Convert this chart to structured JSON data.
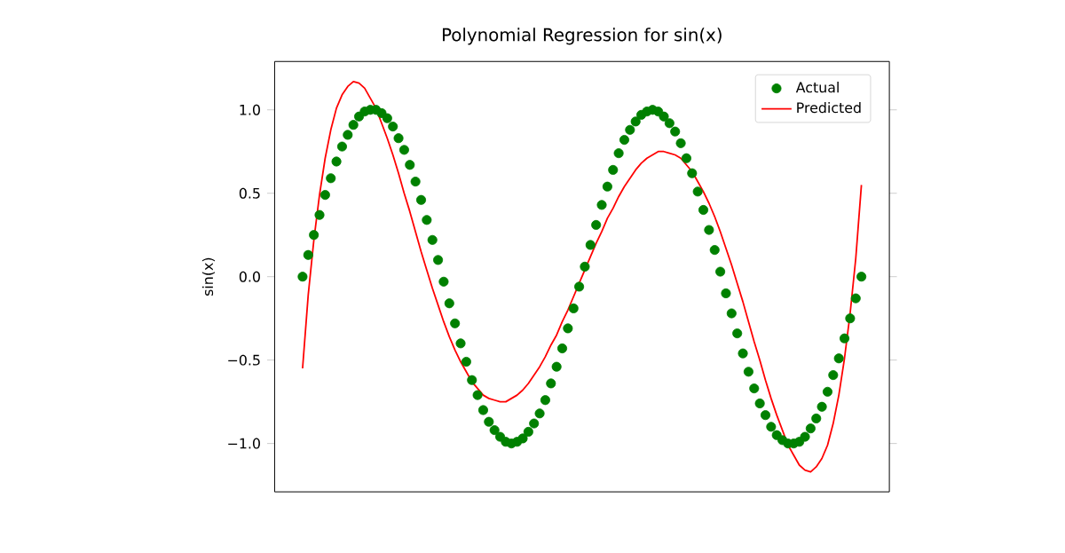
{
  "chart_data": {
    "type": "scatter",
    "title": "Polynomial Regression for sin(x)",
    "ylabel": "sin(x)",
    "categories": [
      null,
      null,
      null,
      null,
      null,
      null,
      null,
      null,
      null,
      null,
      null,
      null,
      null,
      null,
      null,
      null,
      null,
      null,
      null,
      null,
      null,
      null,
      null,
      null,
      null,
      null,
      null,
      null,
      null,
      null,
      null,
      null,
      null,
      null,
      null,
      null,
      null,
      null,
      null,
      null,
      null,
      null,
      null,
      null,
      null,
      null,
      null,
      null,
      null,
      null,
      null,
      null,
      null,
      null,
      null,
      null,
      null,
      null,
      null,
      null,
      null,
      null,
      null,
      null,
      null,
      null,
      null,
      null,
      null,
      null,
      null,
      null,
      null,
      null,
      null,
      null,
      null,
      null,
      null,
      null,
      null,
      null,
      null,
      null,
      null,
      null,
      null,
      null,
      null,
      null,
      null,
      null,
      null,
      null,
      null,
      null,
      null,
      null,
      null,
      null
    ],
    "ylim": [
      -1.29,
      1.29
    ],
    "yticks": [
      {
        "value": -1,
        "label": "−1.0"
      },
      {
        "value": -0.5,
        "label": "−0.5"
      },
      {
        "value": 0,
        "label": "0.0"
      },
      {
        "value": 0.5,
        "label": "0.5"
      },
      {
        "value": 1,
        "label": "1.0"
      }
    ],
    "tick_labels": "y",
    "legend": "top right",
    "series": [
      {
        "name": "Actual",
        "marker": "circle",
        "color": "#008000",
        "values": [
          0,
          0.13,
          0.25,
          0.37,
          0.49,
          0.59,
          0.69,
          0.78,
          0.85,
          0.91,
          0.96,
          0.99,
          1.0,
          1.0,
          0.98,
          0.95,
          0.9,
          0.83,
          0.76,
          0.67,
          0.57,
          0.46,
          0.34,
          0.22,
          0.1,
          -0.03,
          -0.16,
          -0.28,
          -0.4,
          -0.51,
          -0.62,
          -0.71,
          -0.8,
          -0.87,
          -0.92,
          -0.96,
          -0.99,
          -1.0,
          -0.99,
          -0.97,
          -0.93,
          -0.88,
          -0.82,
          -0.74,
          -0.64,
          -0.54,
          -0.43,
          -0.31,
          -0.19,
          -0.06,
          0.06,
          0.19,
          0.31,
          0.43,
          0.54,
          0.64,
          0.74,
          0.82,
          0.88,
          0.93,
          0.97,
          0.99,
          1.0,
          0.99,
          0.96,
          0.92,
          0.87,
          0.8,
          0.71,
          0.62,
          0.51,
          0.4,
          0.28,
          0.16,
          0.03,
          -0.1,
          -0.22,
          -0.34,
          -0.46,
          -0.57,
          -0.67,
          -0.76,
          -0.83,
          -0.9,
          -0.95,
          -0.98,
          -1.0,
          -1.0,
          -0.99,
          -0.96,
          -0.91,
          -0.85,
          -0.78,
          -0.69,
          -0.59,
          -0.49,
          -0.37,
          -0.25,
          -0.13,
          0
        ]
      },
      {
        "name": "Predicted",
        "type": "line",
        "marker": "none",
        "line_style": "solid",
        "color": "#ff0000",
        "values": [
          -0.55,
          -0.11,
          0.22,
          0.49,
          0.71,
          0.88,
          1.01,
          1.09,
          1.14,
          1.17,
          1.16,
          1.13,
          1.07,
          1.01,
          0.92,
          0.83,
          0.73,
          0.62,
          0.5,
          0.39,
          0.27,
          0.15,
          0.04,
          -0.07,
          -0.17,
          -0.27,
          -0.36,
          -0.44,
          -0.51,
          -0.57,
          -0.63,
          -0.67,
          -0.71,
          -0.73,
          -0.74,
          -0.75,
          -0.75,
          -0.73,
          -0.71,
          -0.68,
          -0.64,
          -0.59,
          -0.54,
          -0.48,
          -0.41,
          -0.35,
          -0.27,
          -0.2,
          -0.12,
          -0.04,
          0.04,
          0.12,
          0.2,
          0.27,
          0.35,
          0.41,
          0.48,
          0.54,
          0.59,
          0.64,
          0.68,
          0.71,
          0.73,
          0.75,
          0.75,
          0.74,
          0.73,
          0.71,
          0.67,
          0.63,
          0.57,
          0.51,
          0.44,
          0.36,
          0.27,
          0.17,
          0.07,
          -0.04,
          -0.15,
          -0.27,
          -0.39,
          -0.5,
          -0.62,
          -0.73,
          -0.83,
          -0.92,
          -1.01,
          -1.07,
          -1.13,
          -1.16,
          -1.17,
          -1.14,
          -1.09,
          -1.01,
          -0.88,
          -0.71,
          -0.49,
          -0.22,
          0.11,
          0.55
        ]
      }
    ]
  }
}
